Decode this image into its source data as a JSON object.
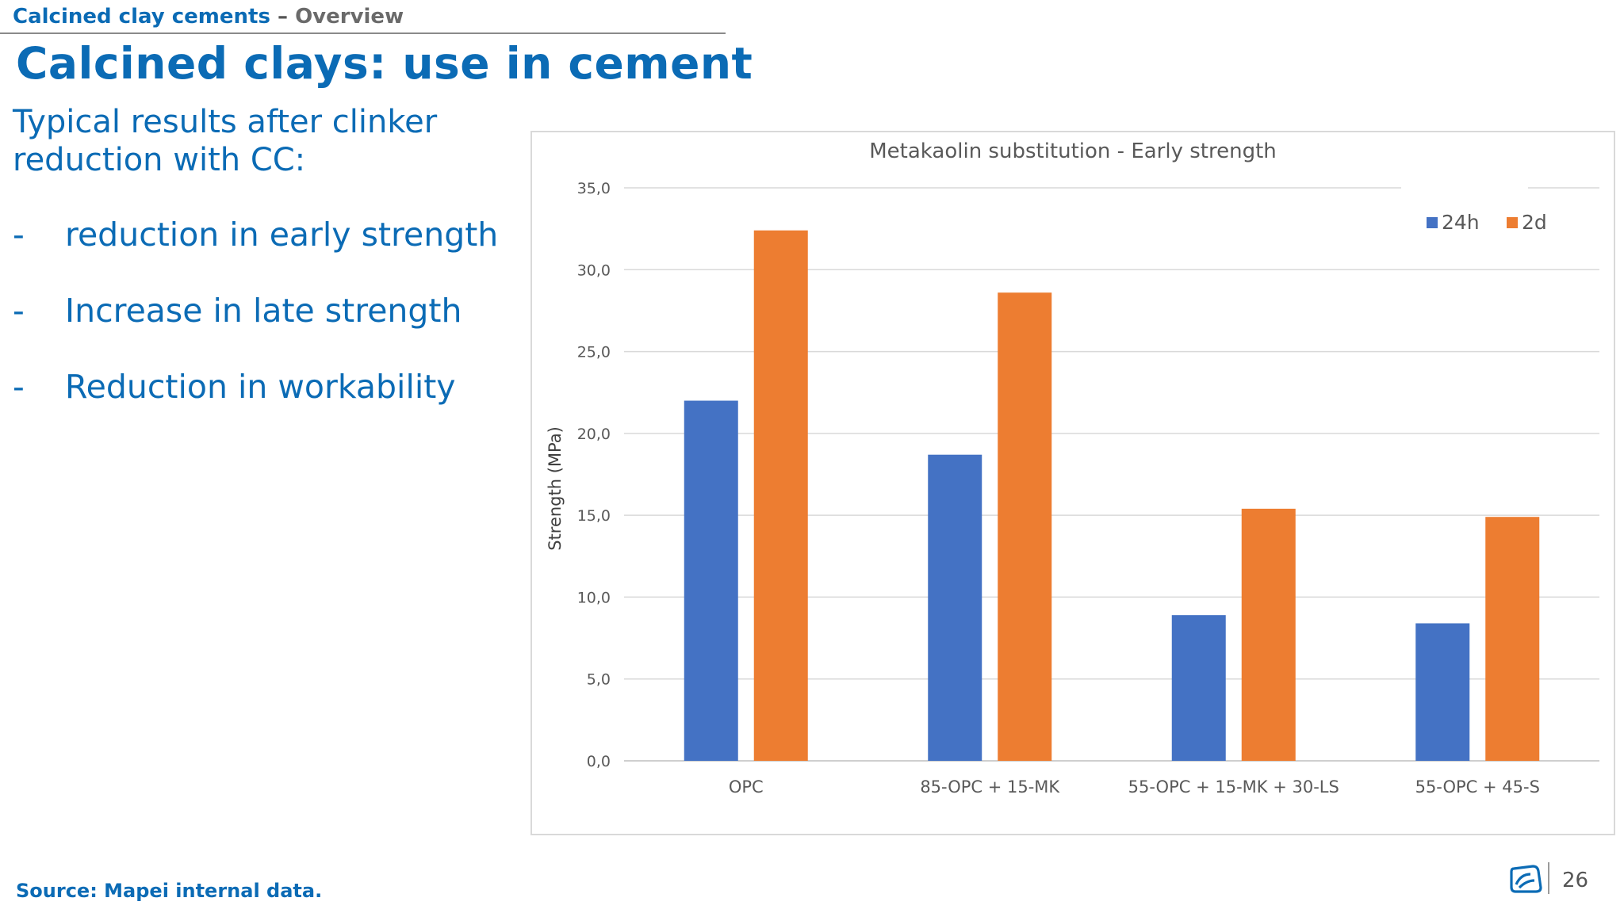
{
  "header": {
    "section": "Calcined clay cements",
    "separator": "–",
    "subsection": "Overview"
  },
  "slide": {
    "title": "Calcined clays: use in cement",
    "intro": "Typical results after clinker reduction with CC:",
    "bullets": [
      {
        "dash": "-",
        "text": "reduction in early strength"
      },
      {
        "dash": "-",
        "text": "Increase in late strength"
      },
      {
        "dash": "-",
        "text": "Reduction in workability"
      }
    ],
    "source": "Source: Mapei internal data.",
    "page_number": "26"
  },
  "colors": {
    "brand_blue": "#0b6bb5",
    "series_24h": "#4472c4",
    "series_2d": "#ed7d31"
  },
  "chart_data": {
    "type": "bar",
    "title": "Metakaolin substitution  - Early strength",
    "xlabel": "",
    "ylabel": "Strength (MPa)",
    "ylim": [
      0,
      35
    ],
    "yticks": [
      "0,0",
      "5,0",
      "10,0",
      "15,0",
      "20,0",
      "25,0",
      "30,0",
      "35,0"
    ],
    "grid": true,
    "legend_position": "top-right",
    "categories": [
      "OPC",
      "85-OPC + 15-MK",
      "55-OPC + 15-MK + 30-LS",
      "55-OPC + 45-S"
    ],
    "series": [
      {
        "name": "24h",
        "color": "#4472c4",
        "values": [
          22.0,
          18.7,
          8.9,
          8.4
        ]
      },
      {
        "name": "2d",
        "color": "#ed7d31",
        "values": [
          32.4,
          28.6,
          15.4,
          14.9
        ]
      }
    ]
  }
}
